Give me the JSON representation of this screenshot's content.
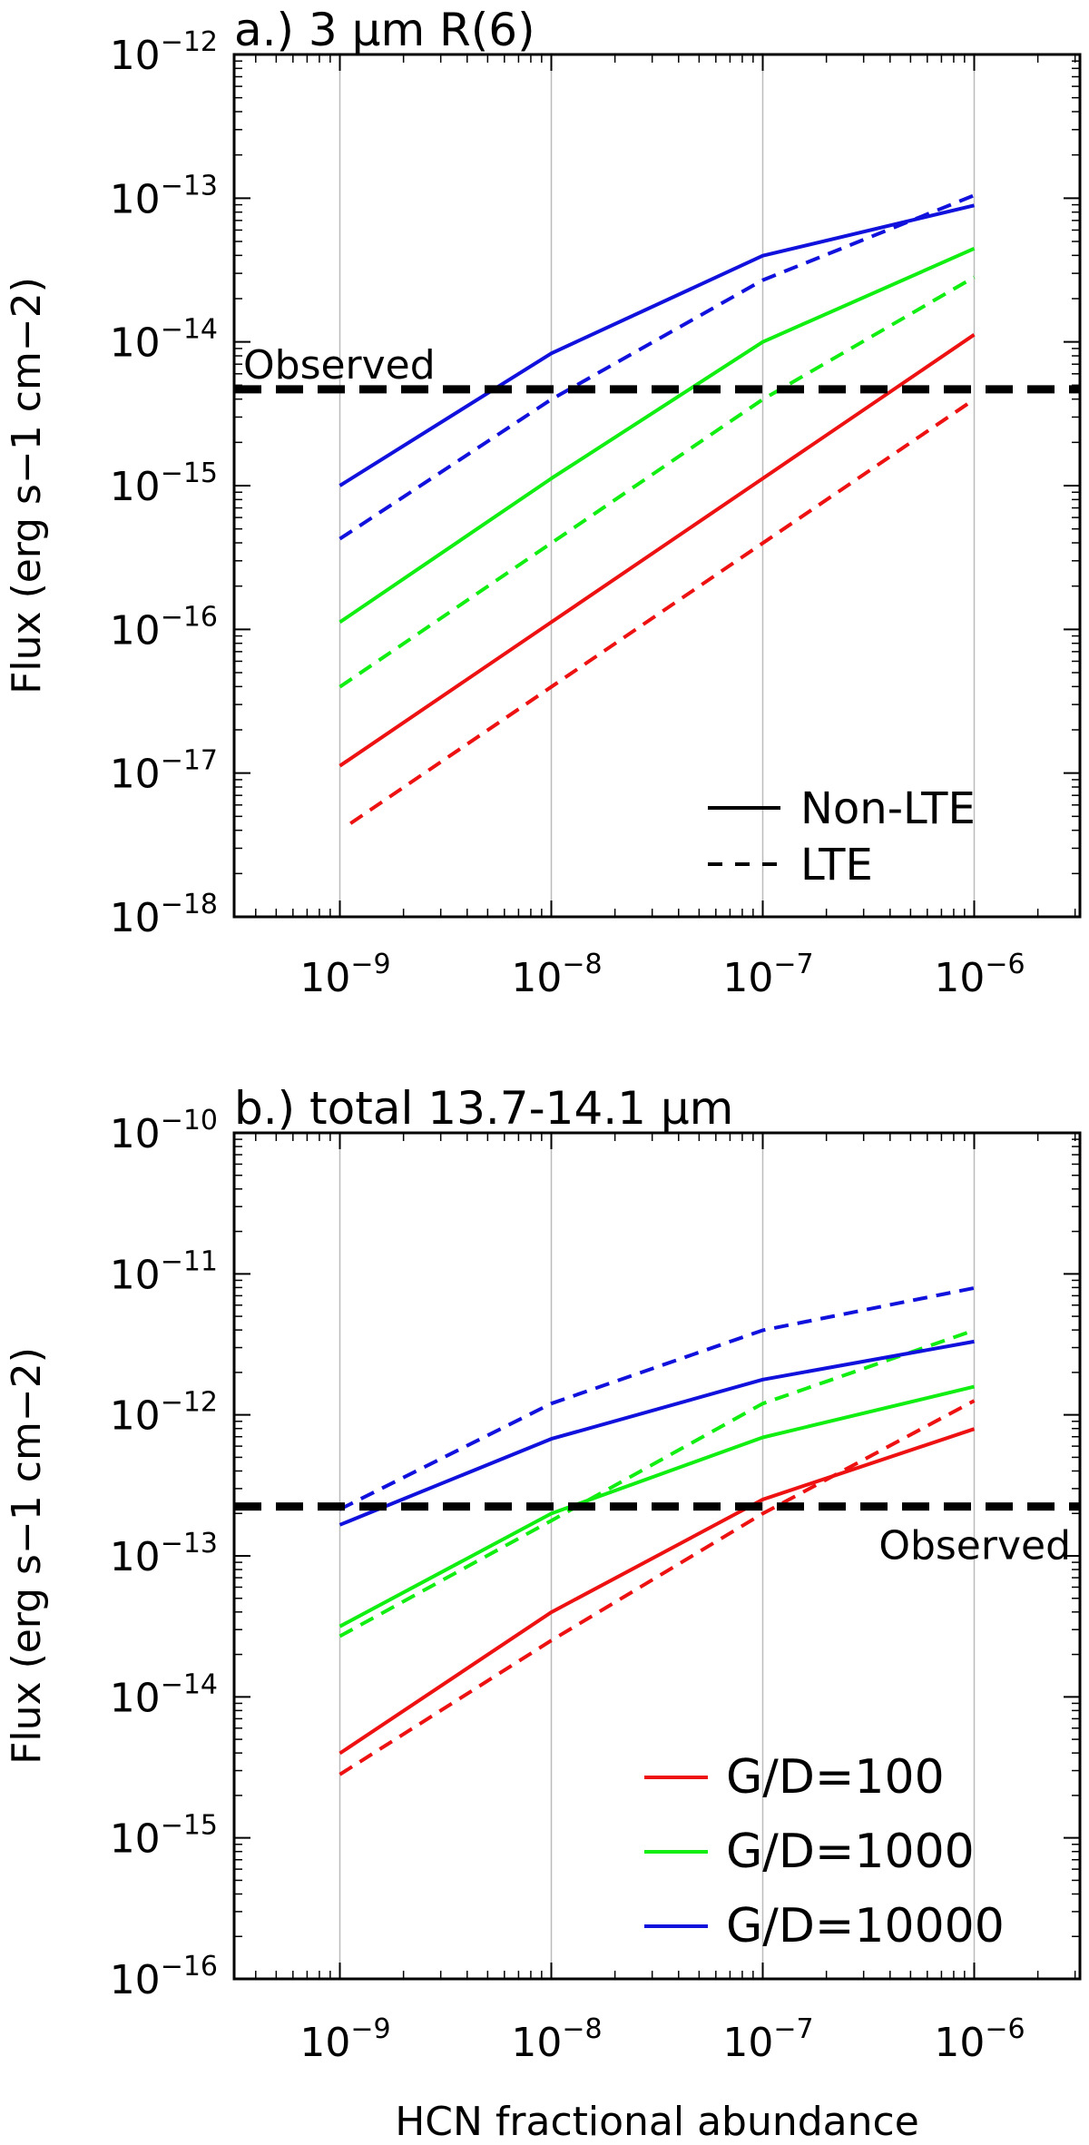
{
  "chart_data": [
    {
      "type": "line",
      "panel": "a",
      "title": "a.) 3 μm R(6)",
      "xlabel": "",
      "ylabel": "Flux (erg s−1 cm−2)",
      "xscale": "log",
      "yscale": "log",
      "xlim_exp": [
        -9.5,
        -5.5
      ],
      "ylim_exp": [
        -18,
        -12
      ],
      "xticks": [
        {
          "exp": -9,
          "label": "10",
          "sup": "−9"
        },
        {
          "exp": -8,
          "label": "10",
          "sup": "−8"
        },
        {
          "exp": -7,
          "label": "10",
          "sup": "−7"
        },
        {
          "exp": -6,
          "label": "10",
          "sup": "−6"
        }
      ],
      "yticks": [
        {
          "exp": -18,
          "label": "10",
          "sup": "−18"
        },
        {
          "exp": -17,
          "label": "10",
          "sup": "−17"
        },
        {
          "exp": -16,
          "label": "10",
          "sup": "−16"
        },
        {
          "exp": -15,
          "label": "10",
          "sup": "−15"
        },
        {
          "exp": -14,
          "label": "10",
          "sup": "−14"
        },
        {
          "exp": -13,
          "label": "10",
          "sup": "−13"
        },
        {
          "exp": -12,
          "label": "10",
          "sup": "−12"
        }
      ],
      "grid_x": [
        -9,
        -8,
        -7,
        -6
      ],
      "observed": {
        "label": "Observed",
        "value_exp": -14.33,
        "label_side": "left-above"
      },
      "legend": {
        "position": "bottom-right",
        "entries": [
          {
            "label": "Non-LTE",
            "style": "solid"
          },
          {
            "label": "LTE",
            "style": "dashed"
          }
        ]
      },
      "series": [
        {
          "name": "G/D=100 Non-LTE",
          "color": "#ee1111",
          "style": "solid",
          "x_exp": [
            -9,
            -8,
            -7,
            -6
          ],
          "y_exp": [
            -16.95,
            -15.95,
            -14.95,
            -13.95
          ]
        },
        {
          "name": "G/D=100 LTE",
          "color": "#ee1111",
          "style": "dashed",
          "x_exp": [
            -8.95,
            -8,
            -7,
            -6
          ],
          "y_exp": [
            -17.35,
            -16.4,
            -15.4,
            -14.4
          ]
        },
        {
          "name": "G/D=1000 Non-LTE",
          "color": "#11ee11",
          "style": "solid",
          "x_exp": [
            -9,
            -8,
            -7,
            -6
          ],
          "y_exp": [
            -15.95,
            -14.95,
            -14.0,
            -13.35
          ]
        },
        {
          "name": "G/D=1000 LTE",
          "color": "#11ee11",
          "style": "dashed",
          "x_exp": [
            -9,
            -8,
            -7,
            -6
          ],
          "y_exp": [
            -16.4,
            -15.4,
            -14.4,
            -13.55
          ]
        },
        {
          "name": "G/D=10000 Non-LTE",
          "color": "#1111dd",
          "style": "solid",
          "x_exp": [
            -9,
            -8,
            -7,
            -6
          ],
          "y_exp": [
            -15.0,
            -14.08,
            -13.4,
            -13.05
          ]
        },
        {
          "name": "G/D=10000 LTE",
          "color": "#1111dd",
          "style": "dashed",
          "x_exp": [
            -9,
            -8,
            -7,
            -6
          ],
          "y_exp": [
            -15.37,
            -14.4,
            -13.57,
            -12.98
          ]
        }
      ]
    },
    {
      "type": "line",
      "panel": "b",
      "title": "b.) total 13.7-14.1 μm",
      "xlabel": "HCN fractional abundance",
      "ylabel": "Flux (erg s−1 cm−2)",
      "xscale": "log",
      "yscale": "log",
      "xlim_exp": [
        -9.5,
        -5.5
      ],
      "ylim_exp": [
        -16,
        -10
      ],
      "xticks": [
        {
          "exp": -9,
          "label": "10",
          "sup": "−9"
        },
        {
          "exp": -8,
          "label": "10",
          "sup": "−8"
        },
        {
          "exp": -7,
          "label": "10",
          "sup": "−7"
        },
        {
          "exp": -6,
          "label": "10",
          "sup": "−6"
        }
      ],
      "yticks": [
        {
          "exp": -16,
          "label": "10",
          "sup": "−16"
        },
        {
          "exp": -15,
          "label": "10",
          "sup": "−15"
        },
        {
          "exp": -14,
          "label": "10",
          "sup": "−14"
        },
        {
          "exp": -13,
          "label": "10",
          "sup": "−13"
        },
        {
          "exp": -12,
          "label": "10",
          "sup": "−12"
        },
        {
          "exp": -11,
          "label": "10",
          "sup": "−11"
        },
        {
          "exp": -10,
          "label": "10",
          "sup": "−10"
        }
      ],
      "grid_x": [
        -9,
        -8,
        -7,
        -6
      ],
      "observed": {
        "label": "Observed",
        "value_exp": -12.65,
        "label_side": "right-below"
      },
      "legend": {
        "position": "bottom-right",
        "entries": [
          {
            "label": "G/D=100",
            "color": "#ee1111",
            "style": "solid"
          },
          {
            "label": "G/D=1000",
            "color": "#11ee11",
            "style": "solid"
          },
          {
            "label": "G/D=10000",
            "color": "#1111dd",
            "style": "solid"
          }
        ]
      },
      "series": [
        {
          "name": "G/D=100 Non-LTE",
          "color": "#ee1111",
          "style": "solid",
          "x_exp": [
            -9,
            -8,
            -7,
            -6
          ],
          "y_exp": [
            -14.4,
            -13.4,
            -12.6,
            -12.1
          ]
        },
        {
          "name": "G/D=100 LTE",
          "color": "#ee1111",
          "style": "dashed",
          "x_exp": [
            -9,
            -8,
            -7,
            -6
          ],
          "y_exp": [
            -14.55,
            -13.6,
            -12.7,
            -11.9
          ]
        },
        {
          "name": "G/D=1000 Non-LTE",
          "color": "#11ee11",
          "style": "solid",
          "x_exp": [
            -9,
            -8,
            -7,
            -6
          ],
          "y_exp": [
            -13.5,
            -12.7,
            -12.16,
            -11.8
          ]
        },
        {
          "name": "G/D=1000 LTE",
          "color": "#11ee11",
          "style": "dashed",
          "x_exp": [
            -9,
            -8,
            -7,
            -6
          ],
          "y_exp": [
            -13.57,
            -12.75,
            -11.92,
            -11.4
          ]
        },
        {
          "name": "G/D=10000 Non-LTE",
          "color": "#1111dd",
          "style": "solid",
          "x_exp": [
            -9,
            -8,
            -7,
            -6
          ],
          "y_exp": [
            -12.78,
            -12.17,
            -11.75,
            -11.48
          ]
        },
        {
          "name": "G/D=10000 LTE",
          "color": "#1111dd",
          "style": "dashed",
          "x_exp": [
            -9,
            -8,
            -7,
            -6
          ],
          "y_exp": [
            -12.67,
            -11.92,
            -11.4,
            -11.1
          ]
        }
      ]
    }
  ]
}
